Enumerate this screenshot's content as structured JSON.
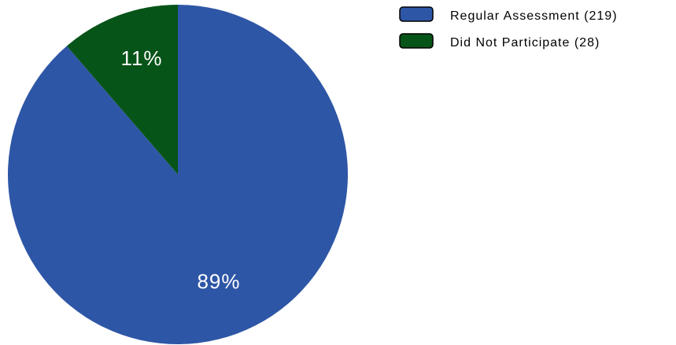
{
  "chart_data": {
    "type": "pie",
    "slices": [
      {
        "label": "Regular Assessment",
        "count": 219,
        "percent_label": "89%",
        "color": "#2e56a6",
        "legend_label": "Regular Assessment (219)"
      },
      {
        "label": "Did Not Participate",
        "count": 28,
        "percent_label": "11%",
        "color": "#075418",
        "legend_label": "Did Not Participate (28)"
      }
    ],
    "legend": "top-right"
  }
}
